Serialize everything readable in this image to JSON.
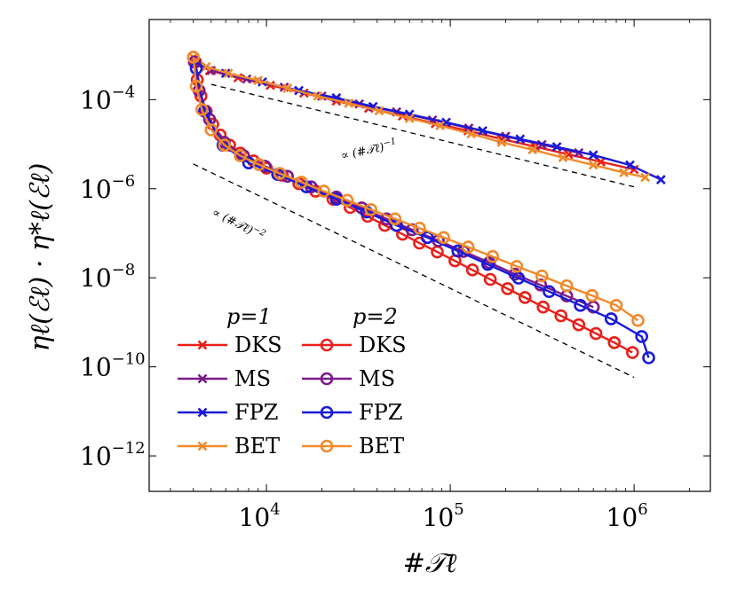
{
  "chart_data": {
    "type": "line",
    "xscale": "log",
    "yscale": "log",
    "xlim": [
      2300,
      2600000
    ],
    "ylim": [
      1.6e-13,
      0.0063
    ],
    "xlabel": "#𝒯ℓ",
    "ylabel": "ηℓ(ℰℓ) · η*ℓ(ℰℓ)",
    "x_ticks": [
      {
        "value": 10000,
        "label": "10",
        "exp": "4"
      },
      {
        "value": 100000,
        "label": "10",
        "exp": "5"
      },
      {
        "value": 1000000,
        "label": "10",
        "exp": "6"
      }
    ],
    "y_ticks": [
      {
        "value": 0.0001,
        "label": "10",
        "exp": "−4"
      },
      {
        "value": 1e-06,
        "label": "10",
        "exp": "−6"
      },
      {
        "value": 1e-08,
        "label": "10",
        "exp": "−8"
      },
      {
        "value": 1e-10,
        "label": "10",
        "exp": "−10"
      },
      {
        "value": 1e-12,
        "label": "10",
        "exp": "−12"
      }
    ],
    "grid": false,
    "legend": {
      "position": "bottom-left",
      "headers": [
        "p=1",
        "p=2"
      ]
    },
    "series": [
      {
        "name": "DKS",
        "p": 1,
        "color": "#e8201a",
        "marker": "cross",
        "x": [
          4100,
          4900,
          7000,
          10500,
          16000,
          24000,
          36000,
          55000,
          83000,
          125000,
          190000,
          290000,
          440000,
          660000,
          1000000
        ],
        "y": [
          0.00068,
          0.00045,
          0.00031,
          0.00021,
          0.00014,
          9.3e-05,
          6.4e-05,
          4.3e-05,
          2.9e-05,
          2e-05,
          1.3e-05,
          8.8e-06,
          5.9e-06,
          4e-06,
          2.7e-06
        ]
      },
      {
        "name": "MS",
        "p": 1,
        "color": "#7b1a8a",
        "marker": "cross",
        "x": [
          4050,
          5000,
          7800,
          12500,
          20000,
          32000,
          51000,
          80000,
          126000,
          200000,
          315000,
          500000
        ],
        "y": [
          0.0007,
          0.00045,
          0.00029,
          0.00019,
          0.00012,
          8e-05,
          5.3e-05,
          3.5e-05,
          2.3e-05,
          1.5e-05,
          9.8e-06,
          6.4e-06
        ]
      },
      {
        "name": "FPZ",
        "p": 1,
        "color": "#1a1ad8",
        "marker": "cross",
        "x": [
          4200,
          6000,
          9500,
          15000,
          24000,
          38000,
          60000,
          95000,
          150000,
          240000,
          380000,
          600000,
          950000,
          1400000
        ],
        "y": [
          0.00066,
          0.00039,
          0.00025,
          0.00016,
          0.00011,
          7e-05,
          4.7e-05,
          3.1e-05,
          2e-05,
          1.3e-05,
          8.7e-06,
          5.7e-06,
          3.4e-06,
          1.6e-06
        ]
      },
      {
        "name": "BET",
        "p": 1,
        "color": "#f08a2c",
        "marker": "cross",
        "x": [
          4000,
          4700,
          6200,
          9000,
          13000,
          19000,
          28000,
          41000,
          60000,
          88000,
          130000,
          190000,
          280000,
          410000,
          600000,
          880000,
          1150000
        ],
        "y": [
          0.0009,
          0.00055,
          0.00039,
          0.00027,
          0.00018,
          0.00012,
          8.3e-05,
          5.6e-05,
          3.8e-05,
          2.6e-05,
          1.7e-05,
          1.1e-05,
          7.5e-06,
          5e-06,
          3.4e-06,
          2.3e-06,
          1.8e-06
        ]
      },
      {
        "name": "DKS",
        "p": 2,
        "color": "#e8201a",
        "marker": "circle",
        "x": [
          4100,
          4200,
          4400,
          4700,
          5100,
          5600,
          6300,
          7200,
          8500,
          10000,
          12200,
          15000,
          18500,
          23000,
          28500,
          35500,
          44000,
          55000,
          68000,
          85000,
          106000,
          132000,
          165000,
          205000,
          255000,
          320000,
          400000,
          500000,
          620000,
          780000,
          980000
        ],
        "y": [
          0.0007,
          0.00028,
          0.00012,
          5.5e-05,
          2.8e-05,
          1.6e-05,
          9.5e-06,
          6.3e-06,
          4.2e-06,
          2.9e-06,
          2e-06,
          1.3e-06,
          8.8e-07,
          5.8e-07,
          3.8e-07,
          2.4e-07,
          1.5e-07,
          9.5e-08,
          6e-08,
          3.8e-08,
          2.4e-08,
          1.5e-08,
          9.2e-09,
          5.7e-09,
          3.6e-09,
          2.2e-09,
          1.4e-09,
          8.8e-10,
          5.6e-10,
          3.5e-10,
          2.1e-10
        ]
      },
      {
        "name": "MS",
        "p": 2,
        "color": "#7b1a8a",
        "marker": "circle",
        "x": [
          4050,
          4300,
          4900,
          5900,
          7500,
          9800,
          13000,
          17500,
          24000,
          33000,
          45000,
          62000,
          86000,
          118000,
          163000,
          225000,
          310000,
          430000,
          600000
        ],
        "y": [
          0.0007,
          0.00016,
          3.6e-05,
          1.1e-05,
          5.5e-06,
          3.2e-06,
          1.9e-06,
          1.1e-06,
          6.5e-07,
          3.7e-07,
          2.1e-07,
          1.2e-07,
          6.8e-08,
          3.9e-08,
          2.2e-08,
          1.2e-08,
          6.9e-09,
          3.9e-09,
          2.2e-09
        ]
      },
      {
        "name": "FPZ",
        "p": 2,
        "color": "#1a1ad8",
        "marker": "circle",
        "x": [
          4150,
          4600,
          5800,
          8000,
          11500,
          16500,
          24000,
          35000,
          51000,
          75000,
          110000,
          160000,
          235000,
          345000,
          510000,
          750000,
          1100000,
          1200000
        ],
        "y": [
          0.0005,
          5.5e-05,
          9.5e-06,
          3.8e-06,
          2.1e-06,
          1.1e-06,
          5.8e-07,
          3e-07,
          1.5e-07,
          8e-08,
          4e-08,
          2e-08,
          9.8e-09,
          4.9e-09,
          2.4e-09,
          1.2e-09,
          4.8e-10,
          1.6e-10
        ]
      },
      {
        "name": "BET",
        "p": 2,
        "color": "#f08a2c",
        "marker": "circle",
        "x": [
          4000,
          4150,
          4450,
          5000,
          5900,
          7200,
          9100,
          11800,
          15500,
          20500,
          27500,
          37000,
          50000,
          68000,
          92000,
          125000,
          170000,
          230000,
          315000,
          430000,
          590000,
          800000,
          1050000
        ],
        "y": [
          0.0009,
          0.0002,
          6e-05,
          2.1e-05,
          9.5e-06,
          5.5e-06,
          3.5e-06,
          2.2e-06,
          1.4e-06,
          8.8e-07,
          5.5e-07,
          3.4e-07,
          2.1e-07,
          1.3e-07,
          8e-08,
          4.9e-08,
          3e-08,
          1.8e-08,
          1.1e-08,
          6.6e-09,
          4e-09,
          2.4e-09,
          1.1e-09
        ]
      }
    ],
    "reference_lines": [
      {
        "label": "∝ (#𝒯ℓ)",
        "exp": "−1",
        "x": [
          5000,
          1000000
        ],
        "y": [
          0.00022,
          1.1e-06
        ]
      },
      {
        "label": "∝ (#𝒯ℓ)",
        "exp": "−2",
        "x": [
          4000,
          1000000
        ],
        "y": [
          3.6e-06,
          5.8e-11
        ]
      }
    ]
  }
}
